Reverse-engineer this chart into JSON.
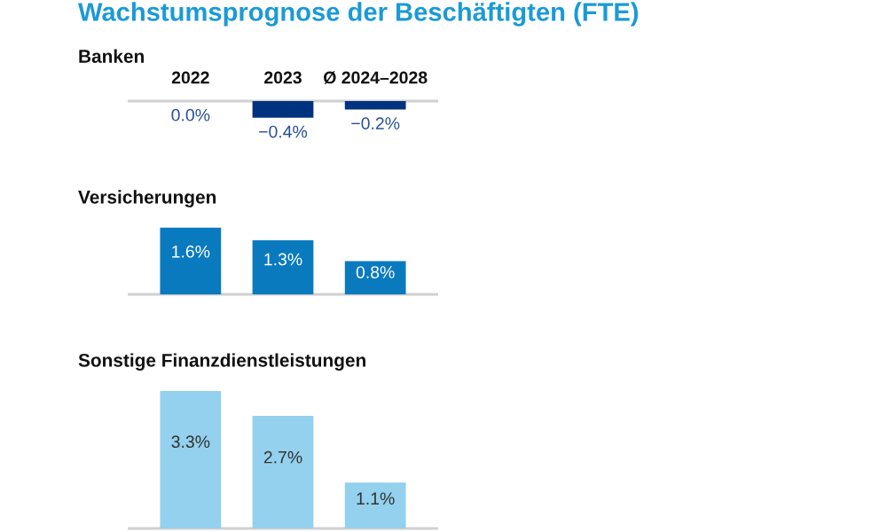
{
  "chart_data": [
    {
      "type": "bar",
      "title": "Wachstumsprognose der Beschäftigten (FTE)",
      "subtitle": "Banken",
      "categories": [
        "2022",
        "2023",
        "Ø 2024–2028"
      ],
      "values": [
        0.0,
        -0.4,
        -0.2
      ],
      "value_labels": [
        "0.0%",
        "−0.4%",
        "−0.2%"
      ],
      "color": "#00337f",
      "grid": false,
      "legend": false
    },
    {
      "type": "bar",
      "subtitle": "Versicherungen",
      "categories": [
        null,
        null,
        null
      ],
      "values": [
        1.6,
        1.3,
        0.8
      ],
      "value_labels": [
        "1.6%",
        "1.3%",
        "0.8%"
      ],
      "color": "#0a7abf",
      "grid": false,
      "legend": false
    },
    {
      "type": "bar",
      "subtitle": "Sonstige Finanzdienstleistungen",
      "categories": [
        null,
        null,
        null
      ],
      "values": [
        3.3,
        2.7,
        1.1
      ],
      "value_labels": [
        "3.3%",
        "2.7%",
        "1.1%"
      ],
      "color": "#93d1ee",
      "grid": false,
      "legend": false
    }
  ]
}
